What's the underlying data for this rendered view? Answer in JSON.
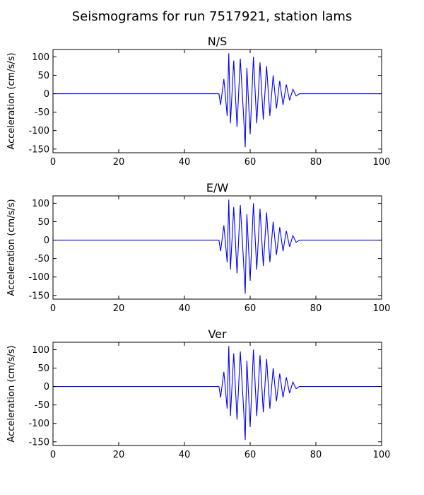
{
  "figure": {
    "title": "Seismograms for run 7517921, station lams"
  },
  "chart_data": [
    {
      "type": "line",
      "title": "N/S",
      "xlabel": "",
      "ylabel": "Acceleration (cm/s/s)",
      "xlim": [
        0,
        100
      ],
      "ylim": [
        -160,
        120
      ],
      "xticks": [
        0,
        20,
        40,
        60,
        80,
        100
      ],
      "yticks": [
        100,
        50,
        0,
        -50,
        -100,
        -150
      ],
      "grid": false,
      "color": "#0000ff",
      "series": [
        {
          "x": [
            0,
            50.5,
            51,
            52,
            53,
            53.5,
            54,
            55,
            56,
            57,
            58,
            58.5,
            59,
            60,
            61,
            62,
            63,
            64,
            65,
            66,
            67,
            68,
            69,
            70,
            71,
            72,
            73,
            74,
            75,
            100
          ],
          "y": [
            0,
            0,
            -30,
            40,
            -60,
            110,
            -80,
            90,
            -90,
            95,
            -60,
            -145,
            70,
            -110,
            100,
            -80,
            85,
            -70,
            75,
            -60,
            50,
            -40,
            35,
            -30,
            25,
            -18,
            12,
            -6,
            0,
            0
          ]
        }
      ]
    },
    {
      "type": "line",
      "title": "E/W",
      "xlabel": "",
      "ylabel": "Acceleration (cm/s/s)",
      "xlim": [
        0,
        100
      ],
      "ylim": [
        -160,
        120
      ],
      "xticks": [
        0,
        20,
        40,
        60,
        80,
        100
      ],
      "yticks": [
        100,
        50,
        0,
        -50,
        -100,
        -150
      ],
      "grid": false,
      "color": "#0000ff",
      "series": [
        {
          "x": [
            0,
            50.5,
            51,
            52,
            53,
            53.5,
            54,
            55,
            56,
            57,
            58,
            58.5,
            59,
            60,
            61,
            62,
            63,
            64,
            65,
            66,
            67,
            68,
            69,
            70,
            71,
            72,
            73,
            74,
            75,
            100
          ],
          "y": [
            0,
            0,
            -30,
            40,
            -60,
            110,
            -80,
            90,
            -90,
            95,
            -60,
            -145,
            70,
            -110,
            100,
            -80,
            85,
            -70,
            75,
            -60,
            50,
            -40,
            35,
            -30,
            25,
            -18,
            12,
            -6,
            0,
            0
          ]
        }
      ]
    },
    {
      "type": "line",
      "title": "Ver",
      "xlabel": "",
      "ylabel": "Acceleration (cm/s/s)",
      "xlim": [
        0,
        100
      ],
      "ylim": [
        -160,
        120
      ],
      "xticks": [
        0,
        20,
        40,
        60,
        80,
        100
      ],
      "yticks": [
        100,
        50,
        0,
        -50,
        -100,
        -150
      ],
      "grid": false,
      "color": "#0000ff",
      "series": [
        {
          "x": [
            0,
            50.5,
            51,
            52,
            53,
            53.5,
            54,
            55,
            56,
            57,
            58,
            58.5,
            59,
            60,
            61,
            62,
            63,
            64,
            65,
            66,
            67,
            68,
            69,
            70,
            71,
            72,
            73,
            74,
            75,
            100
          ],
          "y": [
            0,
            0,
            -30,
            40,
            -60,
            110,
            -80,
            90,
            -90,
            95,
            -60,
            -145,
            70,
            -110,
            100,
            -80,
            85,
            -70,
            75,
            -60,
            50,
            -40,
            35,
            -30,
            25,
            -18,
            12,
            -6,
            0,
            0
          ]
        }
      ]
    }
  ]
}
